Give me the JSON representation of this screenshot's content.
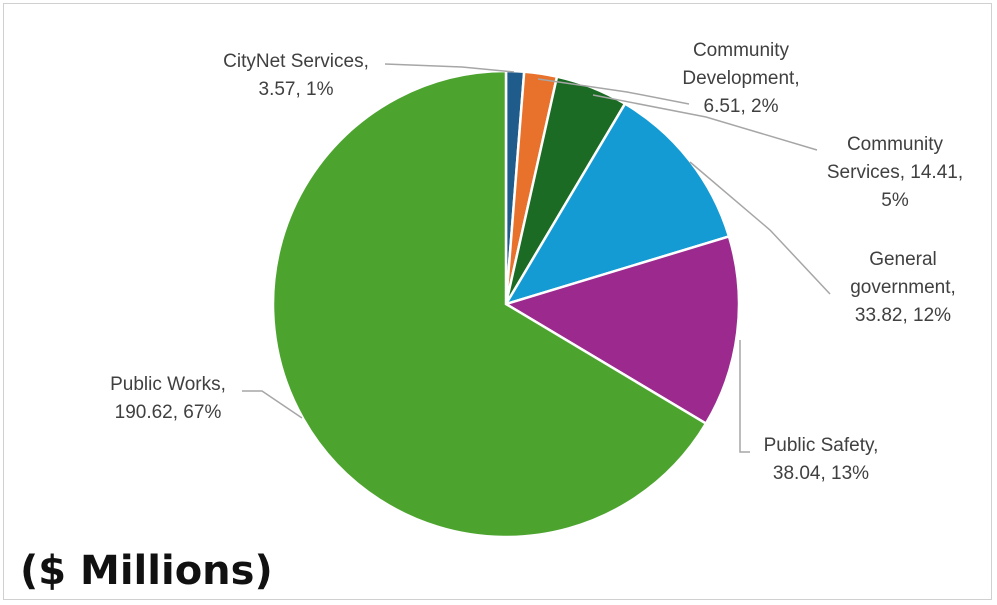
{
  "chart_data": {
    "type": "pie",
    "units_label": "($ Millions)",
    "slices": [
      {
        "name": "CityNet Services",
        "value": 3.57,
        "percent": "1%",
        "color": "#1f5c8b",
        "label_lines": [
          "CityNet Services,",
          "3.57, 1%"
        ]
      },
      {
        "name": "Community Development",
        "value": 6.51,
        "percent": "2%",
        "color": "#e8712c",
        "label_lines": [
          "Community",
          "Development,",
          "6.51, 2%"
        ]
      },
      {
        "name": "Community Services",
        "value": 14.41,
        "percent": "5%",
        "color": "#1b6b24",
        "label_lines": [
          "Community",
          "Services, 14.41,",
          "5%"
        ]
      },
      {
        "name": "General government",
        "value": 33.82,
        "percent": "12%",
        "color": "#159bd4",
        "label_lines": [
          "General",
          "government,",
          "33.82, 12%"
        ]
      },
      {
        "name": "Public Safety",
        "value": 38.04,
        "percent": "13%",
        "color": "#9c2a8e",
        "label_lines": [
          "Public Safety,",
          "38.04, 13%"
        ]
      },
      {
        "name": "Public Works",
        "value": 190.62,
        "percent": "67%",
        "color": "#4ca42f",
        "label_lines": [
          "Public Works,",
          "190.62, 67%"
        ]
      }
    ]
  }
}
